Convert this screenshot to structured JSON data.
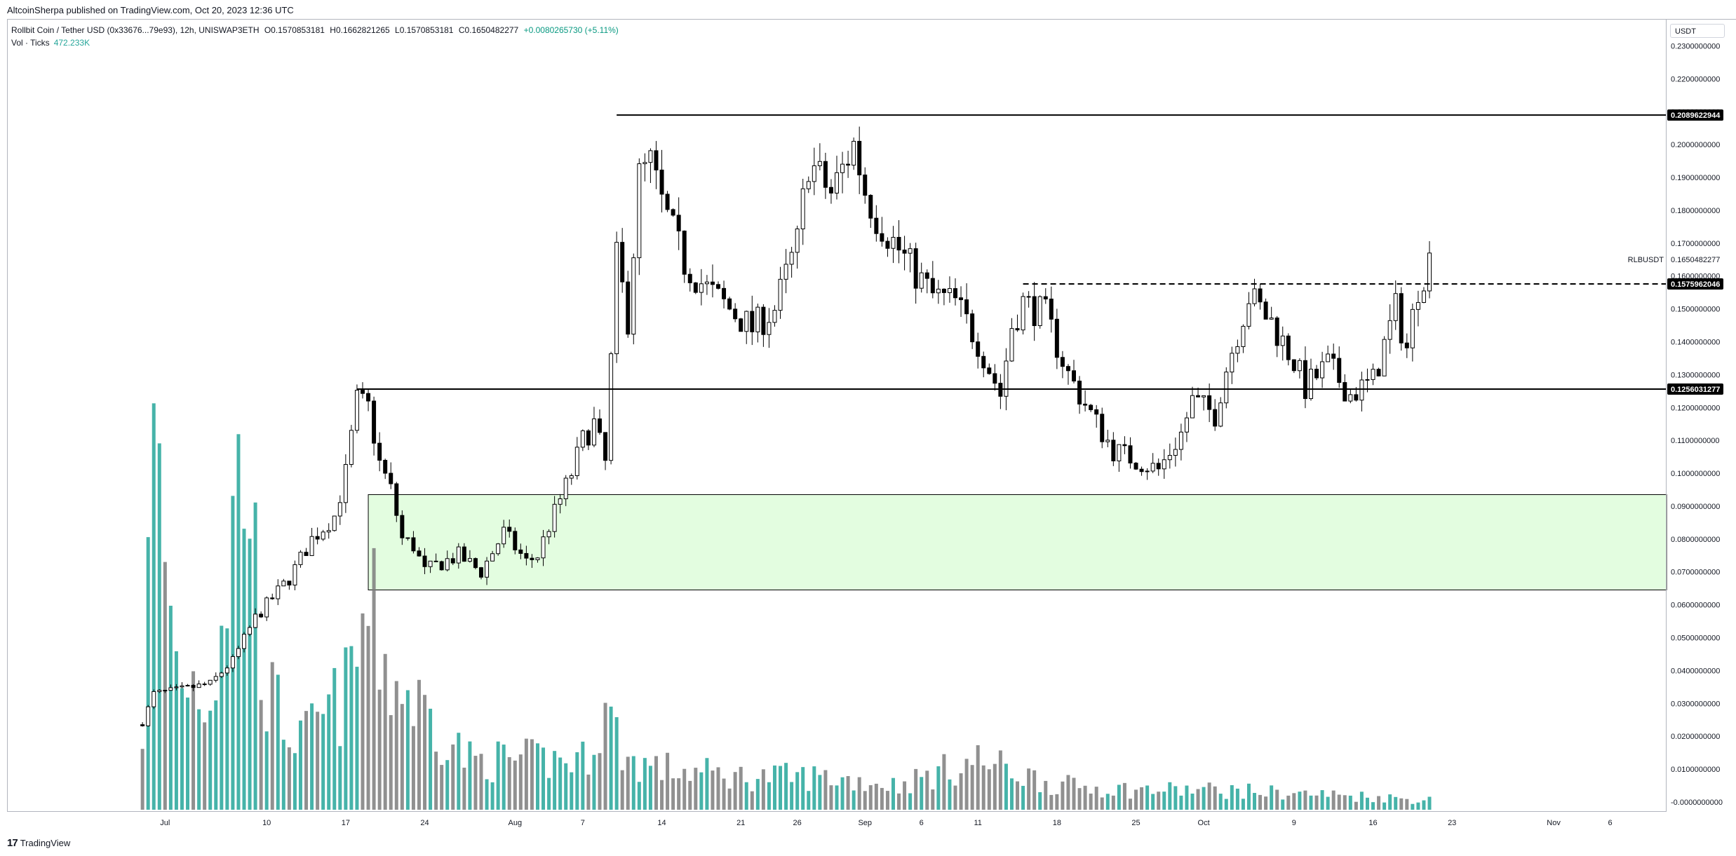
{
  "header": {
    "published": "AltcoinSherpa published on TradingView.com, Oct 20, 2023 12:36 UTC"
  },
  "legend": {
    "symbol": "Rollbit Coin / Tether USD (0x33676...79e93), 12h, UNISWAP3ETH",
    "open": "O0.1570853181",
    "high": "H0.1662821265",
    "low": "L0.1570853181",
    "close": "C0.1650482277",
    "change": "+0.0080265730 (+5.11%)",
    "volume_label": "Vol · Ticks",
    "volume_value": "472.233K"
  },
  "currency": "USDT",
  "footer": {
    "brand": "TradingView"
  },
  "colors": {
    "bull_candle_fill": "#ffffff",
    "bear_candle_fill": "#000000",
    "candle_outline": "#000000",
    "volume_up": "#26a69a",
    "volume_down": "#7c7c7c",
    "demand_zone_fill": "#e3fde0",
    "demand_zone_border": "#000000",
    "line_color": "#000000"
  },
  "chart_data": {
    "type": "candlestick",
    "interval": "12h",
    "y_axis": {
      "ticks": [
        "0.2300000000",
        "0.2200000000",
        "0.2100000000",
        "0.2000000000",
        "0.1900000000",
        "0.1800000000",
        "0.1700000000",
        "0.1600000000",
        "0.1500000000",
        "0.1400000000",
        "0.1300000000",
        "0.1200000000",
        "0.1100000000",
        "0.1000000000",
        "0.0900000000",
        "0.0800000000",
        "0.0700000000",
        "0.0600000000",
        "0.0500000000",
        "0.0400000000",
        "0.0300000000",
        "0.0200000000",
        "0.0100000000",
        "-0.0000000000"
      ],
      "tick_values": [
        0.23,
        0.22,
        0.21,
        0.2,
        0.19,
        0.18,
        0.17,
        0.16,
        0.15,
        0.14,
        0.13,
        0.12,
        0.11,
        0.1,
        0.09,
        0.08,
        0.07,
        0.06,
        0.05,
        0.04,
        0.03,
        0.02,
        0.01,
        0.0
      ],
      "range": [
        -0.003,
        0.238
      ],
      "position": "right"
    },
    "x_axis": {
      "ticks": [
        {
          "label": "Jul",
          "date": "2023-07-01"
        },
        {
          "label": "10",
          "date": "2023-07-10"
        },
        {
          "label": "17",
          "date": "2023-07-17"
        },
        {
          "label": "24",
          "date": "2023-07-24"
        },
        {
          "label": "Aug",
          "date": "2023-08-01"
        },
        {
          "label": "7",
          "date": "2023-08-07"
        },
        {
          "label": "14",
          "date": "2023-08-14"
        },
        {
          "label": "21",
          "date": "2023-08-21"
        },
        {
          "label": "26",
          "date": "2023-08-26"
        },
        {
          "label": "Sep",
          "date": "2023-09-01"
        },
        {
          "label": "6",
          "date": "2023-09-06"
        },
        {
          "label": "11",
          "date": "2023-09-11"
        },
        {
          "label": "18",
          "date": "2023-09-18"
        },
        {
          "label": "25",
          "date": "2023-09-25"
        },
        {
          "label": "Oct",
          "date": "2023-10-01"
        },
        {
          "label": "9",
          "date": "2023-10-09"
        },
        {
          "label": "16",
          "date": "2023-10-16"
        },
        {
          "label": "23",
          "date": "2023-10-23"
        },
        {
          "label": "Nov",
          "date": "2023-11-01"
        },
        {
          "label": "6",
          "date": "2023-11-06"
        }
      ],
      "range": [
        "2023-06-17",
        "2023-11-11"
      ]
    },
    "price_anchors": [
      [
        "2023-06-29",
        0.024
      ],
      [
        "2023-06-30",
        0.033
      ],
      [
        "2023-07-02",
        0.034
      ],
      [
        "2023-07-05",
        0.036
      ],
      [
        "2023-07-07",
        0.043
      ],
      [
        "2023-07-09",
        0.056
      ],
      [
        "2023-07-12",
        0.068
      ],
      [
        "2023-07-14",
        0.08
      ],
      [
        "2023-07-16",
        0.087
      ],
      [
        "2023-07-17",
        0.1
      ],
      [
        "2023-07-18",
        0.122
      ],
      [
        "2023-07-19",
        0.12
      ],
      [
        "2023-07-20",
        0.103
      ],
      [
        "2023-07-21",
        0.095
      ],
      [
        "2023-07-22",
        0.08
      ],
      [
        "2023-07-23",
        0.078
      ],
      [
        "2023-07-24",
        0.07
      ],
      [
        "2023-07-25",
        0.072
      ],
      [
        "2023-07-27",
        0.075
      ],
      [
        "2023-07-29",
        0.07
      ],
      [
        "2023-07-31",
        0.082
      ],
      [
        "2023-08-02",
        0.073
      ],
      [
        "2023-08-03",
        0.075
      ],
      [
        "2023-08-04",
        0.084
      ],
      [
        "2023-08-06",
        0.1
      ],
      [
        "2023-08-07",
        0.11
      ],
      [
        "2023-08-08",
        0.115
      ],
      [
        "2023-08-09",
        0.103
      ],
      [
        "2023-08-10",
        0.165
      ],
      [
        "2023-08-11",
        0.147
      ],
      [
        "2023-08-12",
        0.19
      ],
      [
        "2023-08-13",
        0.194
      ],
      [
        "2023-08-14",
        0.182
      ],
      [
        "2023-08-16",
        0.164
      ],
      [
        "2023-08-18",
        0.156
      ],
      [
        "2023-08-20",
        0.15
      ],
      [
        "2023-08-22",
        0.144
      ],
      [
        "2023-08-24",
        0.15
      ],
      [
        "2023-08-26",
        0.17
      ],
      [
        "2023-08-27",
        0.195
      ],
      [
        "2023-08-29",
        0.185
      ],
      [
        "2023-08-31",
        0.2
      ],
      [
        "2023-09-01",
        0.186
      ],
      [
        "2023-09-02",
        0.178
      ],
      [
        "2023-09-04",
        0.168
      ],
      [
        "2023-09-05",
        0.163
      ],
      [
        "2023-09-07",
        0.154
      ],
      [
        "2023-09-09",
        0.152
      ],
      [
        "2023-09-11",
        0.14
      ],
      [
        "2023-09-13",
        0.124
      ],
      [
        "2023-09-14",
        0.145
      ],
      [
        "2023-09-15",
        0.152
      ],
      [
        "2023-09-17",
        0.148
      ],
      [
        "2023-09-19",
        0.13
      ],
      [
        "2023-09-21",
        0.118
      ],
      [
        "2023-09-23",
        0.107
      ],
      [
        "2023-09-25",
        0.104
      ],
      [
        "2023-09-27",
        0.101
      ],
      [
        "2023-09-29",
        0.112
      ],
      [
        "2023-09-30",
        0.122
      ],
      [
        "2023-10-02",
        0.118
      ],
      [
        "2023-10-03",
        0.132
      ],
      [
        "2023-10-05",
        0.154
      ],
      [
        "2023-10-07",
        0.146
      ],
      [
        "2023-10-09",
        0.134
      ],
      [
        "2023-10-10",
        0.126
      ],
      [
        "2023-10-12",
        0.133
      ],
      [
        "2023-10-14",
        0.124
      ],
      [
        "2023-10-16",
        0.128
      ],
      [
        "2023-10-18",
        0.15
      ],
      [
        "2023-10-19",
        0.138
      ],
      [
        "2023-10-20",
        0.157
      ],
      [
        "2023-10-21",
        0.165
      ]
    ],
    "volume_anchors": [
      [
        "2023-06-29",
        0.05
      ],
      [
        "2023-06-30",
        0.22
      ],
      [
        "2023-07-02",
        0.09
      ],
      [
        "2023-07-05",
        0.07
      ],
      [
        "2023-07-08",
        0.22
      ],
      [
        "2023-07-10",
        0.07
      ],
      [
        "2023-07-13",
        0.04
      ],
      [
        "2023-07-17",
        0.07
      ],
      [
        "2023-07-19",
        0.12
      ],
      [
        "2023-07-21",
        0.08
      ],
      [
        "2023-07-24",
        0.06
      ],
      [
        "2023-07-28",
        0.03
      ],
      [
        "2023-08-03",
        0.03
      ],
      [
        "2023-08-07",
        0.03
      ],
      [
        "2023-08-09",
        0.06
      ],
      [
        "2023-08-11",
        0.03
      ],
      [
        "2023-08-14",
        0.025
      ],
      [
        "2023-08-21",
        0.02
      ],
      [
        "2023-08-28",
        0.02
      ],
      [
        "2023-09-04",
        0.015
      ],
      [
        "2023-09-11",
        0.03
      ],
      [
        "2023-09-18",
        0.015
      ],
      [
        "2023-09-25",
        0.012
      ],
      [
        "2023-10-02",
        0.012
      ],
      [
        "2023-10-09",
        0.01
      ],
      [
        "2023-10-16",
        0.008
      ],
      [
        "2023-10-20",
        0.006
      ]
    ],
    "volume_range": [
      0,
      0.115
    ],
    "price_labels": [
      {
        "label": "0.2089622944",
        "value": 0.2089622944,
        "style": "filled"
      },
      {
        "label": "0.1575962046",
        "value": 0.1575962046,
        "style": "filled"
      },
      {
        "label": "0.1256031277",
        "value": 0.1256031277,
        "style": "filled"
      },
      {
        "label": "0.1650482277",
        "value": 0.1650482277,
        "style": "plain",
        "symbol": "RLBUSDT"
      }
    ],
    "drawings": [
      {
        "type": "hline",
        "value": 0.2089622944,
        "from": "2023-08-10",
        "style": "solid"
      },
      {
        "type": "hline",
        "value": 0.1256031277,
        "from": "2023-07-18",
        "style": "solid"
      },
      {
        "type": "hline",
        "value": 0.1575962046,
        "from": "2023-09-15",
        "style": "dashed"
      },
      {
        "type": "zone",
        "from": "2023-07-19",
        "top": 0.0935,
        "bottom": 0.0645
      }
    ]
  }
}
